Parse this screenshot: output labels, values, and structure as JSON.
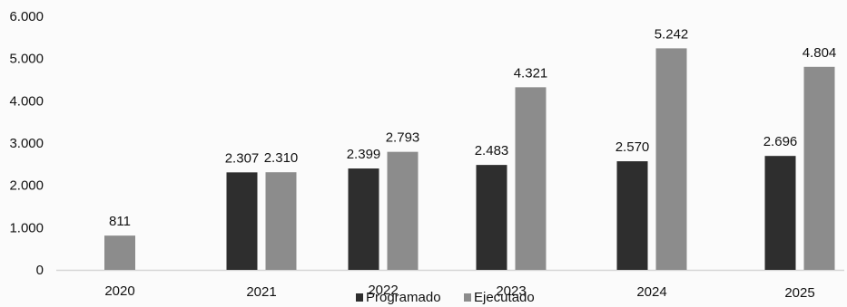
{
  "chart_data": {
    "type": "bar",
    "title": "",
    "xlabel": "",
    "ylabel": "",
    "categories": [
      "2020",
      "2021",
      "2022",
      "2023",
      "2024",
      "2025"
    ],
    "series": [
      {
        "name": "Programado",
        "color": "#2e2e2e",
        "values": [
          null,
          2307,
          2399,
          2483,
          2570,
          2696
        ],
        "labels": [
          "",
          "2.307",
          "2.399",
          "2.483",
          "2.570",
          "2.696"
        ]
      },
      {
        "name": "Ejecutado",
        "color": "#8c8c8c",
        "values": [
          811,
          2310,
          2793,
          4321,
          5242,
          4804
        ],
        "labels": [
          "811",
          "2.310",
          "2.793",
          "4.321",
          "5.242",
          "4.804"
        ]
      }
    ],
    "ylim": [
      0,
      6000
    ],
    "yticks": [
      0,
      1000,
      2000,
      3000,
      4000,
      5000,
      6000
    ],
    "ytick_labels": [
      "0",
      "1.000",
      "2.000",
      "3.000",
      "4.000",
      "5.000",
      "6.000"
    ],
    "grid": false,
    "legend_position": "bottom-center"
  }
}
